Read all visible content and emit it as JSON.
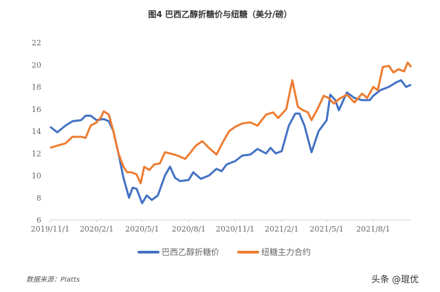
{
  "chart_data": {
    "type": "line",
    "title": "图4 巴西乙醇折糖价与纽糖（美分/磅）",
    "xlabel": "",
    "ylabel": "",
    "ylim": [
      6,
      22
    ],
    "yticks": [
      "6",
      "8",
      "10",
      "12",
      "14",
      "16",
      "18",
      "20",
      "22"
    ],
    "xlim": [
      "2019-11-01",
      "2021-10-15"
    ],
    "xticks": [
      {
        "date": "2019-11-01",
        "label": "2019/11/1"
      },
      {
        "date": "2020-02-01",
        "label": "2020/2/1"
      },
      {
        "date": "2020-05-01",
        "label": "2020/5/1"
      },
      {
        "date": "2020-08-01",
        "label": "2020/8/1"
      },
      {
        "date": "2020-11-01",
        "label": "2020/11/1"
      },
      {
        "date": "2021-02-01",
        "label": "2021/2/1"
      },
      {
        "date": "2021-05-01",
        "label": "2021/5/1"
      },
      {
        "date": "2021-08-01",
        "label": "2021/8/1"
      }
    ],
    "grid": false,
    "legend_position": "bottom",
    "series": [
      {
        "name": "巴西乙醇折糖价",
        "color": "#4472C4",
        "points": [
          [
            "2019-11-01",
            14.4
          ],
          [
            "2019-11-15",
            13.9
          ],
          [
            "2019-12-01",
            14.5
          ],
          [
            "2019-12-15",
            14.9
          ],
          [
            "2020-01-01",
            15.0
          ],
          [
            "2020-01-10",
            15.4
          ],
          [
            "2020-01-20",
            15.4
          ],
          [
            "2020-02-01",
            15.0
          ],
          [
            "2020-02-15",
            15.1
          ],
          [
            "2020-02-25",
            14.9
          ],
          [
            "2020-03-05",
            14.0
          ],
          [
            "2020-03-15",
            12.0
          ],
          [
            "2020-03-25",
            9.8
          ],
          [
            "2020-04-05",
            8.0
          ],
          [
            "2020-04-12",
            8.9
          ],
          [
            "2020-04-20",
            8.8
          ],
          [
            "2020-05-01",
            7.5
          ],
          [
            "2020-05-10",
            8.2
          ],
          [
            "2020-05-20",
            7.8
          ],
          [
            "2020-06-01",
            8.2
          ],
          [
            "2020-06-15",
            10.0
          ],
          [
            "2020-06-25",
            10.8
          ],
          [
            "2020-07-05",
            9.8
          ],
          [
            "2020-07-15",
            9.5
          ],
          [
            "2020-08-01",
            9.6
          ],
          [
            "2020-08-10",
            10.3
          ],
          [
            "2020-08-25",
            9.7
          ],
          [
            "2020-09-10",
            10.0
          ],
          [
            "2020-09-25",
            10.6
          ],
          [
            "2020-10-05",
            10.4
          ],
          [
            "2020-10-15",
            11.0
          ],
          [
            "2020-11-01",
            11.3
          ],
          [
            "2020-11-15",
            11.8
          ],
          [
            "2020-12-01",
            11.9
          ],
          [
            "2020-12-15",
            12.4
          ],
          [
            "2021-01-01",
            12.0
          ],
          [
            "2021-01-10",
            12.5
          ],
          [
            "2021-01-20",
            12.0
          ],
          [
            "2021-02-01",
            12.2
          ],
          [
            "2021-02-15",
            14.5
          ],
          [
            "2021-02-28",
            15.6
          ],
          [
            "2021-03-08",
            15.6
          ],
          [
            "2021-03-18",
            14.5
          ],
          [
            "2021-04-01",
            12.1
          ],
          [
            "2021-04-15",
            14.0
          ],
          [
            "2021-05-01",
            15.0
          ],
          [
            "2021-05-08",
            17.3
          ],
          [
            "2021-05-18",
            16.8
          ],
          [
            "2021-05-25",
            15.9
          ],
          [
            "2021-06-10",
            17.5
          ],
          [
            "2021-06-25",
            17.0
          ],
          [
            "2021-07-10",
            16.8
          ],
          [
            "2021-07-25",
            16.8
          ],
          [
            "2021-08-01",
            17.2
          ],
          [
            "2021-08-15",
            17.7
          ],
          [
            "2021-09-01",
            18.0
          ],
          [
            "2021-09-15",
            18.4
          ],
          [
            "2021-09-25",
            18.6
          ],
          [
            "2021-10-05",
            18.0
          ],
          [
            "2021-10-15",
            18.2
          ]
        ]
      },
      {
        "name": "纽糖主力合约",
        "color": "#ED7D31",
        "points": [
          [
            "2019-11-01",
            12.5
          ],
          [
            "2019-11-15",
            12.7
          ],
          [
            "2019-12-01",
            12.9
          ],
          [
            "2019-12-15",
            13.5
          ],
          [
            "2020-01-01",
            13.5
          ],
          [
            "2020-01-10",
            13.4
          ],
          [
            "2020-01-20",
            14.5
          ],
          [
            "2020-02-01",
            14.8
          ],
          [
            "2020-02-10",
            15.3
          ],
          [
            "2020-02-15",
            15.8
          ],
          [
            "2020-02-25",
            15.5
          ],
          [
            "2020-03-05",
            14.0
          ],
          [
            "2020-03-15",
            12.0
          ],
          [
            "2020-03-25",
            10.8
          ],
          [
            "2020-04-01",
            10.3
          ],
          [
            "2020-04-10",
            10.3
          ],
          [
            "2020-04-20",
            10.1
          ],
          [
            "2020-04-28",
            9.3
          ],
          [
            "2020-05-05",
            10.8
          ],
          [
            "2020-05-15",
            10.5
          ],
          [
            "2020-05-25",
            11.0
          ],
          [
            "2020-06-05",
            11.1
          ],
          [
            "2020-06-15",
            12.1
          ],
          [
            "2020-06-25",
            12.0
          ],
          [
            "2020-07-10",
            11.8
          ],
          [
            "2020-07-25",
            11.5
          ],
          [
            "2020-08-05",
            12.1
          ],
          [
            "2020-08-15",
            12.7
          ],
          [
            "2020-08-28",
            13.1
          ],
          [
            "2020-09-10",
            12.5
          ],
          [
            "2020-09-25",
            11.9
          ],
          [
            "2020-10-05",
            12.8
          ],
          [
            "2020-10-20",
            14.0
          ],
          [
            "2020-11-01",
            14.4
          ],
          [
            "2020-11-15",
            14.7
          ],
          [
            "2020-12-01",
            14.8
          ],
          [
            "2020-12-15",
            14.5
          ],
          [
            "2021-01-01",
            15.5
          ],
          [
            "2021-01-15",
            15.7
          ],
          [
            "2021-01-25",
            15.2
          ],
          [
            "2021-02-10",
            16.0
          ],
          [
            "2021-02-22",
            18.6
          ],
          [
            "2021-03-05",
            16.2
          ],
          [
            "2021-03-15",
            15.9
          ],
          [
            "2021-03-25",
            15.7
          ],
          [
            "2021-04-01",
            15.0
          ],
          [
            "2021-04-15",
            16.2
          ],
          [
            "2021-04-25",
            17.2
          ],
          [
            "2021-05-05",
            17.0
          ],
          [
            "2021-05-15",
            16.5
          ],
          [
            "2021-05-25",
            16.9
          ],
          [
            "2021-06-10",
            17.3
          ],
          [
            "2021-06-25",
            16.6
          ],
          [
            "2021-07-10",
            17.4
          ],
          [
            "2021-07-20",
            17.0
          ],
          [
            "2021-08-01",
            18.0
          ],
          [
            "2021-08-10",
            17.7
          ],
          [
            "2021-08-20",
            19.8
          ],
          [
            "2021-09-01",
            19.9
          ],
          [
            "2021-09-10",
            19.3
          ],
          [
            "2021-09-20",
            19.6
          ],
          [
            "2021-10-01",
            19.4
          ],
          [
            "2021-10-08",
            20.2
          ],
          [
            "2021-10-15",
            19.8
          ]
        ]
      }
    ]
  },
  "footer": {
    "source": "数据来源：Platts",
    "watermark": "头条 @琨优"
  }
}
